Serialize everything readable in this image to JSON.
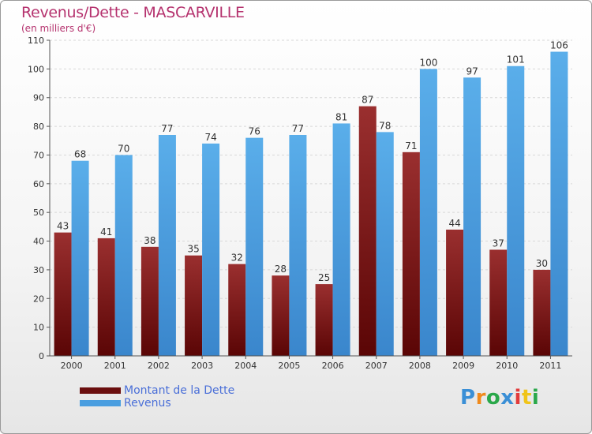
{
  "title": "Revenus/Dette - MASCARVILLE",
  "subtitle": "(en milliers d'€)",
  "chart_data": {
    "type": "bar",
    "categories": [
      "2000",
      "2001",
      "2002",
      "2003",
      "2004",
      "2005",
      "2006",
      "2007",
      "2008",
      "2009",
      "2010",
      "2011"
    ],
    "series": [
      {
        "name": "Montant de la Dette",
        "color": "#8b1a1a",
        "values": [
          43,
          41,
          38,
          35,
          32,
          28,
          25,
          87,
          71,
          44,
          37,
          30
        ]
      },
      {
        "name": "Revenus",
        "color": "#4a9ee0",
        "values": [
          68,
          70,
          77,
          74,
          76,
          77,
          81,
          78,
          100,
          97,
          101,
          106
        ]
      }
    ],
    "ylim": [
      0,
      110
    ],
    "yticks": [
      0,
      10,
      20,
      30,
      40,
      50,
      60,
      70,
      80,
      90,
      100,
      110
    ],
    "grid": true,
    "legend_position": "bottom-left"
  },
  "legend": {
    "items": [
      {
        "label": "Montant de la Dette",
        "color": "#6b0f0f"
      },
      {
        "label": "Revenus",
        "color": "#4a9ee0"
      }
    ]
  },
  "logo": {
    "letters": [
      "P",
      "r",
      "o",
      "x",
      "i",
      "t",
      "i"
    ],
    "colors": [
      "#3a8fd6",
      "#f08a1c",
      "#2aa84a",
      "#3a8fd6",
      "#e23b3b",
      "#f0c419",
      "#2aa84a"
    ]
  }
}
